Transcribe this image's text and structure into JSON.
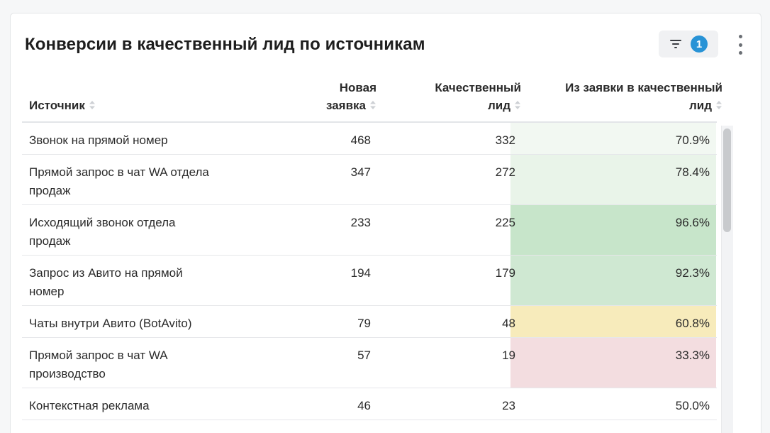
{
  "widget": {
    "title": "Конверсии в качественный лид по источникам",
    "filter_count": "1"
  },
  "table": {
    "headers": {
      "source": "Источник",
      "new_l1": "Новая",
      "new_l2": "заявка",
      "qual_l1": "Качественный",
      "qual_l2": "лид",
      "conv_l1": "Из заявки в качественный",
      "conv_l2": "лид"
    },
    "rows": [
      {
        "source": [
          "Звонок на прямой номер"
        ],
        "new": "468",
        "qual": "332",
        "conv": "70.9%",
        "conv_color": "#f2f8f2"
      },
      {
        "source": [
          "Прямой запрос в чат WA отдела",
          "продаж"
        ],
        "new": "347",
        "qual": "272",
        "conv": "78.4%",
        "conv_color": "#e9f4e9"
      },
      {
        "source": [
          "Исходящий звонок отдела",
          "продаж"
        ],
        "new": "233",
        "qual": "225",
        "conv": "96.6%",
        "conv_color": "#c7e5ca"
      },
      {
        "source": [
          "Запрос из Авито на прямой",
          "номер"
        ],
        "new": "194",
        "qual": "179",
        "conv": "92.3%",
        "conv_color": "#cfe8d2"
      },
      {
        "source": [
          "Чаты внутри Авито (BotAvito)"
        ],
        "new": "79",
        "qual": "48",
        "conv": "60.8%",
        "conv_color": "#f7ebbb"
      },
      {
        "source": [
          "Прямой запрос в чат WA",
          "производство"
        ],
        "new": "57",
        "qual": "19",
        "conv": "33.3%",
        "conv_color": "#f3dde0"
      },
      {
        "source": [
          "Контекстная реклама"
        ],
        "new": "46",
        "qual": "23",
        "conv": "50.0%",
        "conv_color": "#ffffff"
      }
    ]
  },
  "icons": {
    "filter": "filter-icon",
    "sort": "sort-icon",
    "more": "kebab-menu-icon"
  }
}
